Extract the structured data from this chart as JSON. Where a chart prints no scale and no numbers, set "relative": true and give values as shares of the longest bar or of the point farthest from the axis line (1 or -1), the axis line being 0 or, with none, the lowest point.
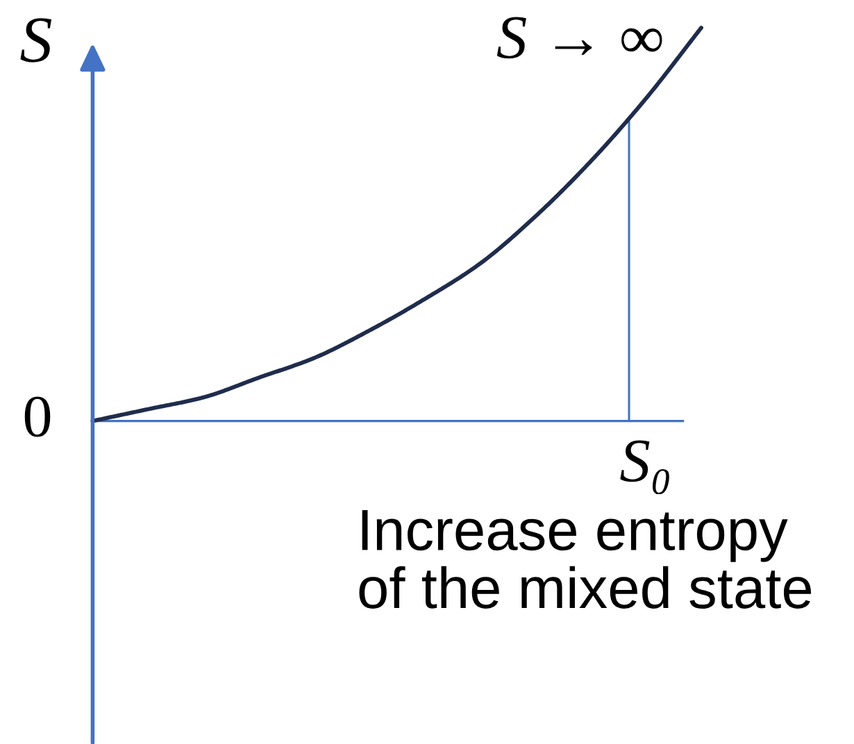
{
  "chart_data": {
    "type": "line",
    "relative": true,
    "ylabel": "S",
    "xlabel": "Increase entropy\nof the mixed state",
    "categories": [
      null,
      null,
      null,
      null,
      null,
      null,
      null,
      null,
      null,
      null,
      null,
      null
    ],
    "series": [
      {
        "color": "#1f2c4c",
        "values": [
          0,
          0.03,
          0.06,
          0.11,
          0.16,
          0.23,
          0.31,
          0.4,
          0.52,
          0.66,
          0.82,
          1
        ]
      }
    ],
    "annotations": [
      "S → ∞",
      "0",
      "S₀"
    ]
  }
}
